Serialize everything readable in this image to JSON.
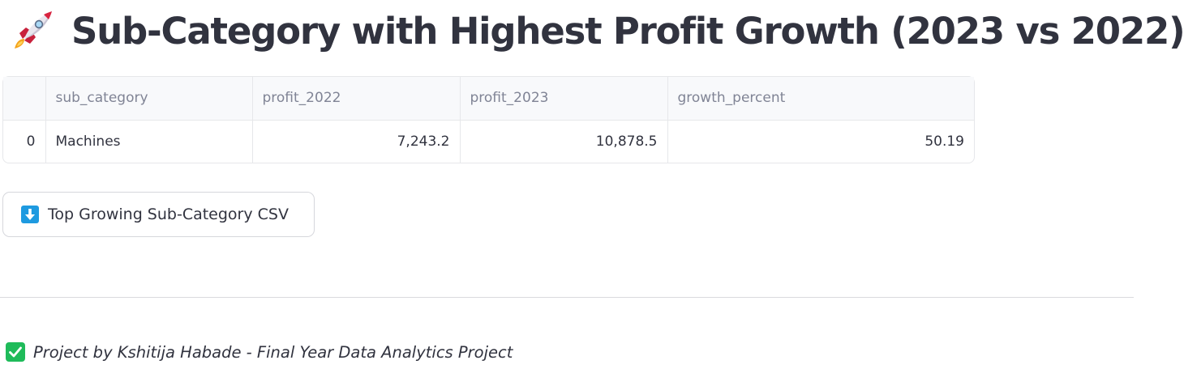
{
  "header": {
    "title_icon": "rocket-icon",
    "title": "Sub-Category with Highest Profit Growth (2023 vs 2022)"
  },
  "table": {
    "columns": [
      "",
      "sub_category",
      "profit_2022",
      "profit_2023",
      "growth_percent"
    ],
    "rows": [
      {
        "index": "0",
        "sub_category": "Machines",
        "profit_2022": "7,243.2",
        "profit_2023": "10,878.5",
        "growth_percent": "50.19"
      }
    ]
  },
  "download_button": {
    "icon": "down-arrow-icon",
    "icon_color": "#1e9ae0",
    "label": "Top Growing Sub-Category CSV"
  },
  "footer": {
    "icon": "check-mark-icon",
    "icon_color": "#1fbb5a",
    "text": "Project by Kshitija Habade - Final Year Data Analytics Project"
  }
}
